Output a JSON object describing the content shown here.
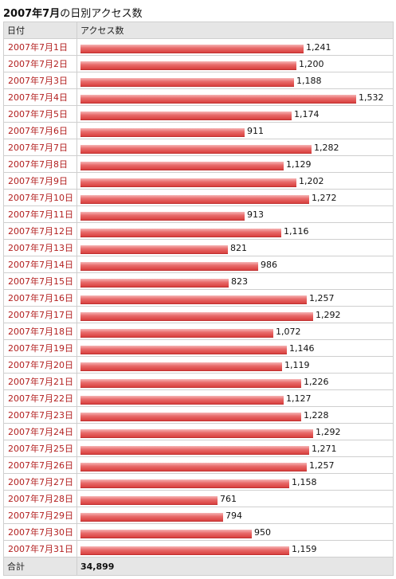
{
  "title": {
    "bold": "2007年7月",
    "rest": "の日別アクセス数"
  },
  "columns": {
    "date": "日付",
    "access": "アクセス数"
  },
  "total": {
    "label": "合計",
    "value": "34,899"
  },
  "chart_data": {
    "type": "bar",
    "orientation": "horizontal",
    "title": "2007年7月の日別アクセス数",
    "categories": [
      "2007年7月1日",
      "2007年7月2日",
      "2007年7月3日",
      "2007年7月4日",
      "2007年7月5日",
      "2007年7月6日",
      "2007年7月7日",
      "2007年7月8日",
      "2007年7月9日",
      "2007年7月10日",
      "2007年7月11日",
      "2007年7月12日",
      "2007年7月13日",
      "2007年7月14日",
      "2007年7月15日",
      "2007年7月16日",
      "2007年7月17日",
      "2007年7月18日",
      "2007年7月19日",
      "2007年7月20日",
      "2007年7月21日",
      "2007年7月22日",
      "2007年7月23日",
      "2007年7月24日",
      "2007年7月25日",
      "2007年7月26日",
      "2007年7月27日",
      "2007年7月28日",
      "2007年7月29日",
      "2007年7月30日",
      "2007年7月31日"
    ],
    "values": [
      1241,
      1200,
      1188,
      1532,
      1174,
      911,
      1282,
      1129,
      1202,
      1272,
      913,
      1116,
      821,
      986,
      823,
      1257,
      1292,
      1072,
      1146,
      1119,
      1226,
      1127,
      1228,
      1292,
      1271,
      1257,
      1158,
      761,
      794,
      950,
      1159
    ],
    "labels": [
      "1,241",
      "1,200",
      "1,188",
      "1,532",
      "1,174",
      "911",
      "1,282",
      "1,129",
      "1,202",
      "1,272",
      "913",
      "1,116",
      "821",
      "986",
      "823",
      "1,257",
      "1,292",
      "1,072",
      "1,146",
      "1,119",
      "1,226",
      "1,127",
      "1,228",
      "1,292",
      "1,271",
      "1,257",
      "1,158",
      "761",
      "794",
      "950",
      "1,159"
    ],
    "bar_color": "#e05050",
    "date_color": "#b32020"
  }
}
